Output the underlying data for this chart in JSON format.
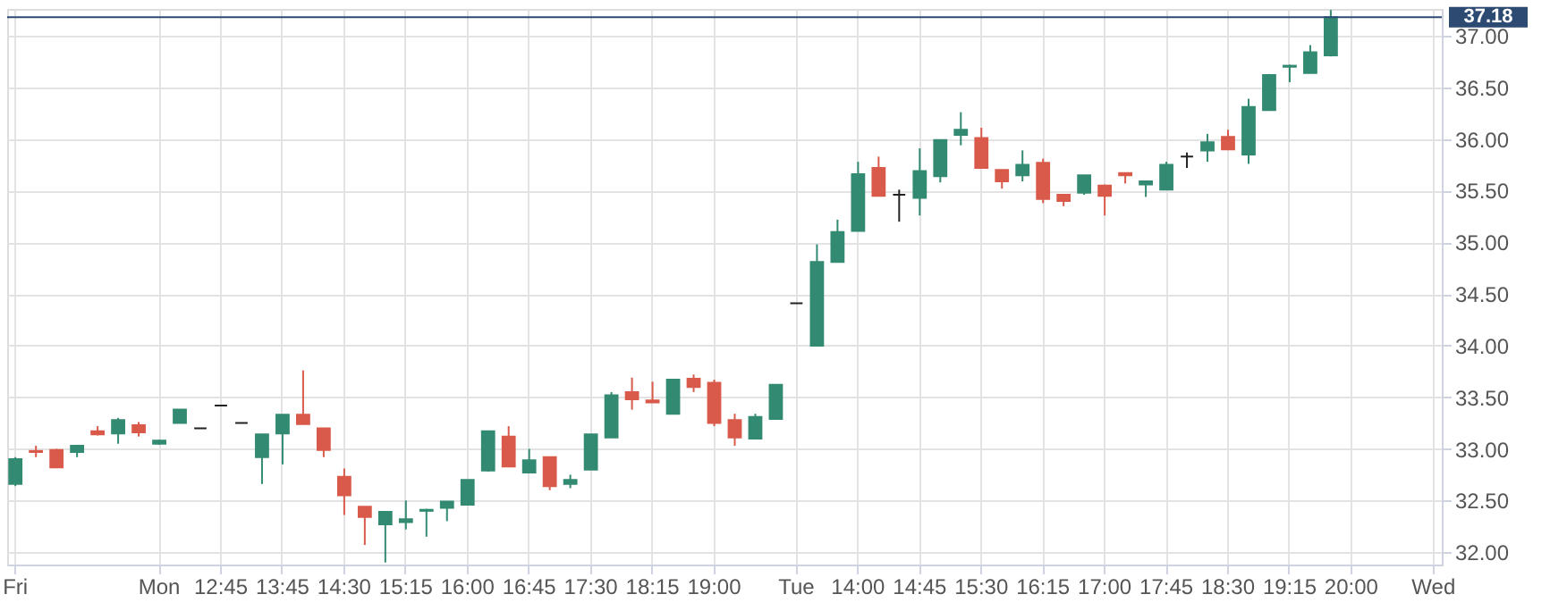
{
  "chart_data": {
    "type": "candlestick",
    "categories": [
      "Fri",
      null,
      null,
      null,
      null,
      null,
      null,
      "Mon",
      null,
      null,
      "12:45",
      null,
      null,
      "13:45",
      null,
      null,
      "14:30",
      null,
      null,
      "15:15",
      null,
      null,
      "16:00",
      null,
      null,
      "16:45",
      null,
      null,
      "17:30",
      null,
      null,
      "18:15",
      null,
      null,
      "19:00",
      null,
      null,
      null,
      "Tue",
      null,
      null,
      "14:00",
      null,
      null,
      "14:45",
      null,
      null,
      "15:30",
      null,
      null,
      "16:15",
      null,
      null,
      "17:00",
      null,
      null,
      "17:45",
      null,
      null,
      "18:30",
      null,
      null,
      "19:15",
      null,
      null,
      "20:00",
      null,
      null,
      null,
      "Wed"
    ],
    "ohlc": [
      [
        32.66,
        32.92,
        32.64,
        32.9
      ],
      [
        32.98,
        33.03,
        32.92,
        32.97
      ],
      [
        32.99,
        33.0,
        32.82,
        32.82
      ],
      [
        32.97,
        33.04,
        32.92,
        33.03
      ],
      [
        33.17,
        33.22,
        33.13,
        33.14
      ],
      [
        33.15,
        33.3,
        33.05,
        33.28
      ],
      [
        33.23,
        33.26,
        33.12,
        33.16
      ],
      [
        33.05,
        33.09,
        33.04,
        33.08
      ],
      [
        33.25,
        33.38,
        33.25,
        33.38
      ],
      [
        33.2,
        33.2,
        33.2,
        33.2
      ],
      [
        33.42,
        33.42,
        33.42,
        33.42
      ],
      [
        33.25,
        33.25,
        33.25,
        33.25
      ],
      [
        32.92,
        33.14,
        32.66,
        33.14
      ],
      [
        33.15,
        33.33,
        32.85,
        33.33
      ],
      [
        33.33,
        33.76,
        33.24,
        33.24
      ],
      [
        33.2,
        33.2,
        32.92,
        32.99
      ],
      [
        32.73,
        32.81,
        32.36,
        32.55
      ],
      [
        32.44,
        32.44,
        32.07,
        32.34
      ],
      [
        32.27,
        32.39,
        31.9,
        32.39
      ],
      [
        32.29,
        32.5,
        32.22,
        32.32
      ],
      [
        32.4,
        32.42,
        32.15,
        32.41
      ],
      [
        32.43,
        32.49,
        32.3,
        32.49
      ],
      [
        32.46,
        32.7,
        32.46,
        32.7
      ],
      [
        32.79,
        33.17,
        32.78,
        33.17
      ],
      [
        33.12,
        33.22,
        32.83,
        32.83
      ],
      [
        32.77,
        33.0,
        32.77,
        32.89
      ],
      [
        32.92,
        32.92,
        32.6,
        32.64
      ],
      [
        32.66,
        32.75,
        32.62,
        32.7
      ],
      [
        32.8,
        33.14,
        32.8,
        33.14
      ],
      [
        33.11,
        33.55,
        33.11,
        33.52
      ],
      [
        33.55,
        33.69,
        33.38,
        33.48
      ],
      [
        33.47,
        33.65,
        33.45,
        33.45
      ],
      [
        33.34,
        33.67,
        33.34,
        33.67
      ],
      [
        33.68,
        33.72,
        33.55,
        33.6
      ],
      [
        33.64,
        33.67,
        33.22,
        33.25
      ],
      [
        33.28,
        33.34,
        33.03,
        33.11
      ],
      [
        33.1,
        33.34,
        33.1,
        33.31
      ],
      [
        33.29,
        33.62,
        33.29,
        33.62
      ],
      [
        34.41,
        34.41,
        34.41,
        34.41
      ],
      [
        34.0,
        34.98,
        34.0,
        34.81
      ],
      [
        34.81,
        35.22,
        34.81,
        35.1
      ],
      [
        35.11,
        35.78,
        35.11,
        35.66
      ],
      [
        35.72,
        35.83,
        35.45,
        35.45
      ],
      [
        35.46,
        35.51,
        35.2,
        35.46
      ],
      [
        35.43,
        35.91,
        35.26,
        35.69
      ],
      [
        35.64,
        35.99,
        35.58,
        35.99
      ],
      [
        36.04,
        36.26,
        35.94,
        36.09
      ],
      [
        36.01,
        36.11,
        35.72,
        35.72
      ],
      [
        35.7,
        35.7,
        35.52,
        35.59
      ],
      [
        35.65,
        35.89,
        35.59,
        35.75
      ],
      [
        35.77,
        35.81,
        35.38,
        35.42
      ],
      [
        35.46,
        35.46,
        35.35,
        35.4
      ],
      [
        35.48,
        35.65,
        35.46,
        35.65
      ],
      [
        35.55,
        35.56,
        35.26,
        35.45
      ],
      [
        35.67,
        35.67,
        35.57,
        35.65
      ],
      [
        35.56,
        35.59,
        35.44,
        35.59
      ],
      [
        35.51,
        35.78,
        35.51,
        35.75
      ],
      [
        35.83,
        35.87,
        35.72,
        35.83
      ],
      [
        35.89,
        36.05,
        35.78,
        35.97
      ],
      [
        36.02,
        36.09,
        35.9,
        35.9
      ],
      [
        35.85,
        36.39,
        35.76,
        36.31
      ],
      [
        36.28,
        36.63,
        36.28,
        36.62
      ],
      [
        36.7,
        36.72,
        36.55,
        36.71
      ],
      [
        36.64,
        36.91,
        36.64,
        36.84
      ],
      [
        36.81,
        37.25,
        36.8,
        37.18
      ],
      null,
      null,
      null,
      null,
      null
    ],
    "colors": [
      "#338a72",
      "#d95a4a",
      "#d95a4a",
      "#338a72",
      "#d95a4a",
      "#338a72",
      "#d95a4a",
      "#338a72",
      "#338a72",
      "#222222",
      "#222222",
      "#222222",
      "#338a72",
      "#338a72",
      "#d95a4a",
      "#d95a4a",
      "#d95a4a",
      "#d95a4a",
      "#338a72",
      "#338a72",
      "#338a72",
      "#338a72",
      "#338a72",
      "#338a72",
      "#d95a4a",
      "#338a72",
      "#d95a4a",
      "#338a72",
      "#338a72",
      "#338a72",
      "#d95a4a",
      "#d95a4a",
      "#338a72",
      "#d95a4a",
      "#d95a4a",
      "#d95a4a",
      "#338a72",
      "#338a72",
      "#222222",
      "#338a72",
      "#338a72",
      "#338a72",
      "#d95a4a",
      "#222222",
      "#338a72",
      "#338a72",
      "#338a72",
      "#d95a4a",
      "#d95a4a",
      "#338a72",
      "#d95a4a",
      "#d95a4a",
      "#338a72",
      "#d95a4a",
      "#d95a4a",
      "#338a72",
      "#338a72",
      "#222222",
      "#338a72",
      "#d95a4a",
      "#338a72",
      "#338a72",
      "#338a72",
      "#338a72",
      "#338a72",
      null,
      null,
      null,
      null,
      null
    ],
    "ylim": [
      31.88,
      37.26
    ],
    "yticks": [
      {
        "value": 32,
        "label": "32.00"
      },
      {
        "value": 32.5,
        "label": "32.50"
      },
      {
        "value": 33,
        "label": "33.00"
      },
      {
        "value": 33.5,
        "label": "33.50"
      },
      {
        "value": 34,
        "label": "34.00"
      },
      {
        "value": 34.5,
        "label": "34.50"
      },
      {
        "value": 35,
        "label": "35.00"
      },
      {
        "value": 35.5,
        "label": "35.50"
      },
      {
        "value": 36,
        "label": "36.00"
      },
      {
        "value": 36.5,
        "label": "36.50"
      },
      {
        "value": 37,
        "label": "37.00"
      }
    ],
    "ref_lines": [
      {
        "axis": "y",
        "value": 37.18,
        "label": "37.18",
        "color": "#2c4a72"
      }
    ],
    "grid": true
  }
}
